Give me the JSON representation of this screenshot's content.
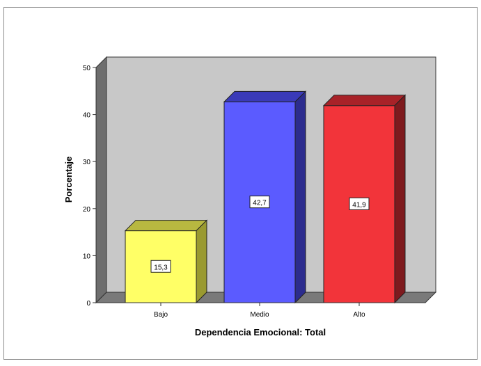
{
  "chart_data": {
    "type": "bar",
    "categories": [
      "Bajo",
      "Medio",
      "Alto"
    ],
    "values": [
      15.3,
      42.7,
      41.9
    ],
    "data_labels": [
      "15,3",
      "42,7",
      "41,9"
    ],
    "title": "",
    "xlabel": "Dependencia Emocional: Total",
    "ylabel": "Porcentaje",
    "ylim": [
      0,
      50
    ],
    "yticks": [
      0,
      10,
      20,
      30,
      40,
      50
    ],
    "grid": false,
    "bar_3d": true,
    "colors": {
      "bars": [
        "#ffff66",
        "#5b5bff",
        "#f2343a"
      ],
      "bars_top": [
        "#b8b840",
        "#3a3ab8",
        "#a82228"
      ],
      "bars_side": [
        "#9a9a30",
        "#2c2c8e",
        "#7e1a1e"
      ],
      "plot_back": "#c8c8c8",
      "wall_side": "#6e6e6e",
      "floor": "#7a7a7a",
      "frame": "#8a8a8a"
    }
  }
}
